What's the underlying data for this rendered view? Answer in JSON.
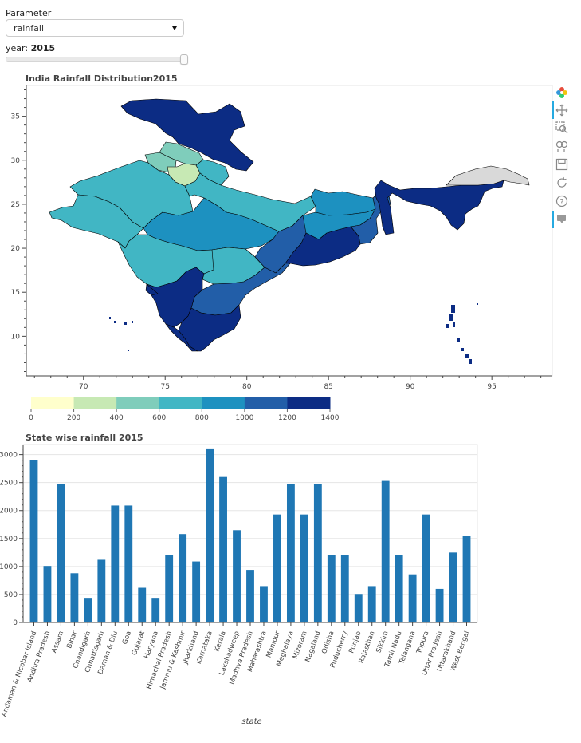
{
  "widgets": {
    "parameter_label": "Parameter",
    "parameter_value": "rainfall",
    "year_label": "year: ",
    "year_value": "2015"
  },
  "toolbar": {
    "tools": [
      "bokeh-logo-icon",
      "pan-icon",
      "box-zoom-icon",
      "wheel-zoom-icon",
      "save-icon",
      "reset-icon",
      "help-icon",
      "hover-icon"
    ]
  },
  "colors": {
    "palette": [
      "#ffffcc",
      "#c7e9b4",
      "#7fcdbb",
      "#41b6c4",
      "#1d91c0",
      "#225ea8",
      "#0c2c84"
    ],
    "bar": "#1f77b4",
    "no_data": "#d9d9d9"
  },
  "chart_data": [
    {
      "type": "choropleth-map",
      "title": "India Rainfall Distribution2015",
      "x_ticks": [
        70,
        75,
        80,
        85,
        90,
        95
      ],
      "y_ticks": [
        10,
        15,
        20,
        25,
        30,
        35
      ],
      "xlim": [
        66.5,
        98.7
      ],
      "ylim": [
        5.5,
        38.5
      ],
      "colorbar": {
        "ticks": [
          0,
          200,
          400,
          600,
          800,
          1000,
          1200,
          1400
        ]
      }
    },
    {
      "type": "bar",
      "title": "State wise rainfall 2015",
      "xlabel": "state",
      "ylabel": "",
      "ylim": [
        0,
        3180
      ],
      "y_ticks": [
        0,
        500,
        1000,
        1500,
        2000,
        2500,
        3000
      ],
      "categories": [
        "Andaman & Nicobar Island",
        "Andhra Pradesh",
        "Assam",
        "Bihar",
        "Chandigarh",
        "Chhattisgarh",
        "Daman & Diu",
        "Goa",
        "Gujarat",
        "Haryana",
        "Himachal Pradesh",
        "Jammu & Kashmir",
        "Jharkhand",
        "Karnataka",
        "Kerala",
        "Lakshadweep",
        "Madhya Pradesh",
        "Maharashtra",
        "Manipur",
        "Meghalaya",
        "Mizoram",
        "Nagaland",
        "Odisha",
        "Puducherry",
        "Punjab",
        "Rajasthan",
        "Sikkim",
        "Tamil Nadu",
        "Telangana",
        "Tripura",
        "Uttar Pradesh",
        "Uttarakhand",
        "West Bengal"
      ],
      "values": [
        2900,
        1010,
        2480,
        880,
        440,
        1120,
        2090,
        2090,
        620,
        440,
        1210,
        1580,
        1090,
        3110,
        2600,
        1650,
        940,
        650,
        1930,
        2480,
        1930,
        2480,
        1210,
        1210,
        510,
        650,
        2530,
        1210,
        860,
        1930,
        600,
        1250,
        1540
      ]
    }
  ]
}
